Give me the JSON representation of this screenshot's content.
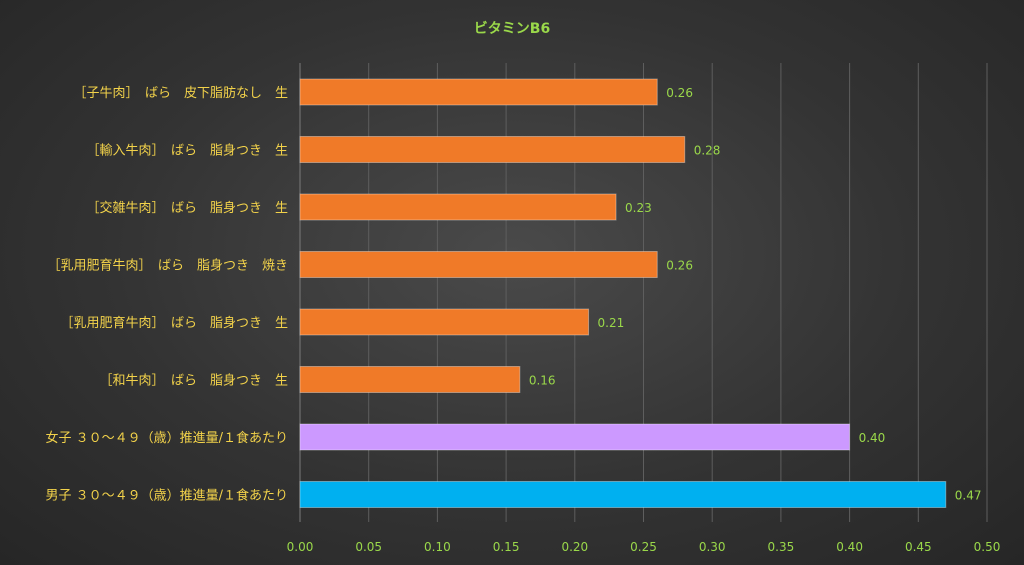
{
  "chart_data": {
    "type": "bar",
    "orientation": "horizontal",
    "title": "ビタミンB6",
    "xlabel": "",
    "ylabel": "",
    "xlim": [
      0,
      0.5
    ],
    "x_ticks": [
      "0.00",
      "0.05",
      "0.10",
      "0.15",
      "0.20",
      "0.25",
      "0.30",
      "0.35",
      "0.40",
      "0.45",
      "0.50"
    ],
    "grid": "vertical",
    "legend": "none",
    "categories": [
      "［子牛肉］　ばら　皮下脂肪なし　生",
      "［輸入牛肉］　ばら　脂身つき　生",
      "［交雑牛肉］　ばら　脂身つき　生",
      "［乳用肥育牛肉］　ばら　脂身つき　焼き",
      "［乳用肥育牛肉］　ばら　脂身つき　生",
      "［和牛肉］　ばら　脂身つき　生",
      "女子 ３０～４９（歳）推進量/１食あたり",
      "男子 ３０～４９（歳）推進量/１食あたり"
    ],
    "values": [
      0.26,
      0.28,
      0.23,
      0.26,
      0.21,
      0.16,
      0.4,
      0.47
    ],
    "data_labels": [
      "0.26",
      "0.28",
      "0.23",
      "0.26",
      "0.21",
      "0.16",
      "0.40",
      "0.47"
    ],
    "bar_colors": [
      "#f07a28",
      "#f07a28",
      "#f07a28",
      "#f07a28",
      "#f07a28",
      "#f07a28",
      "#cc99ff",
      "#00b0f0"
    ]
  }
}
